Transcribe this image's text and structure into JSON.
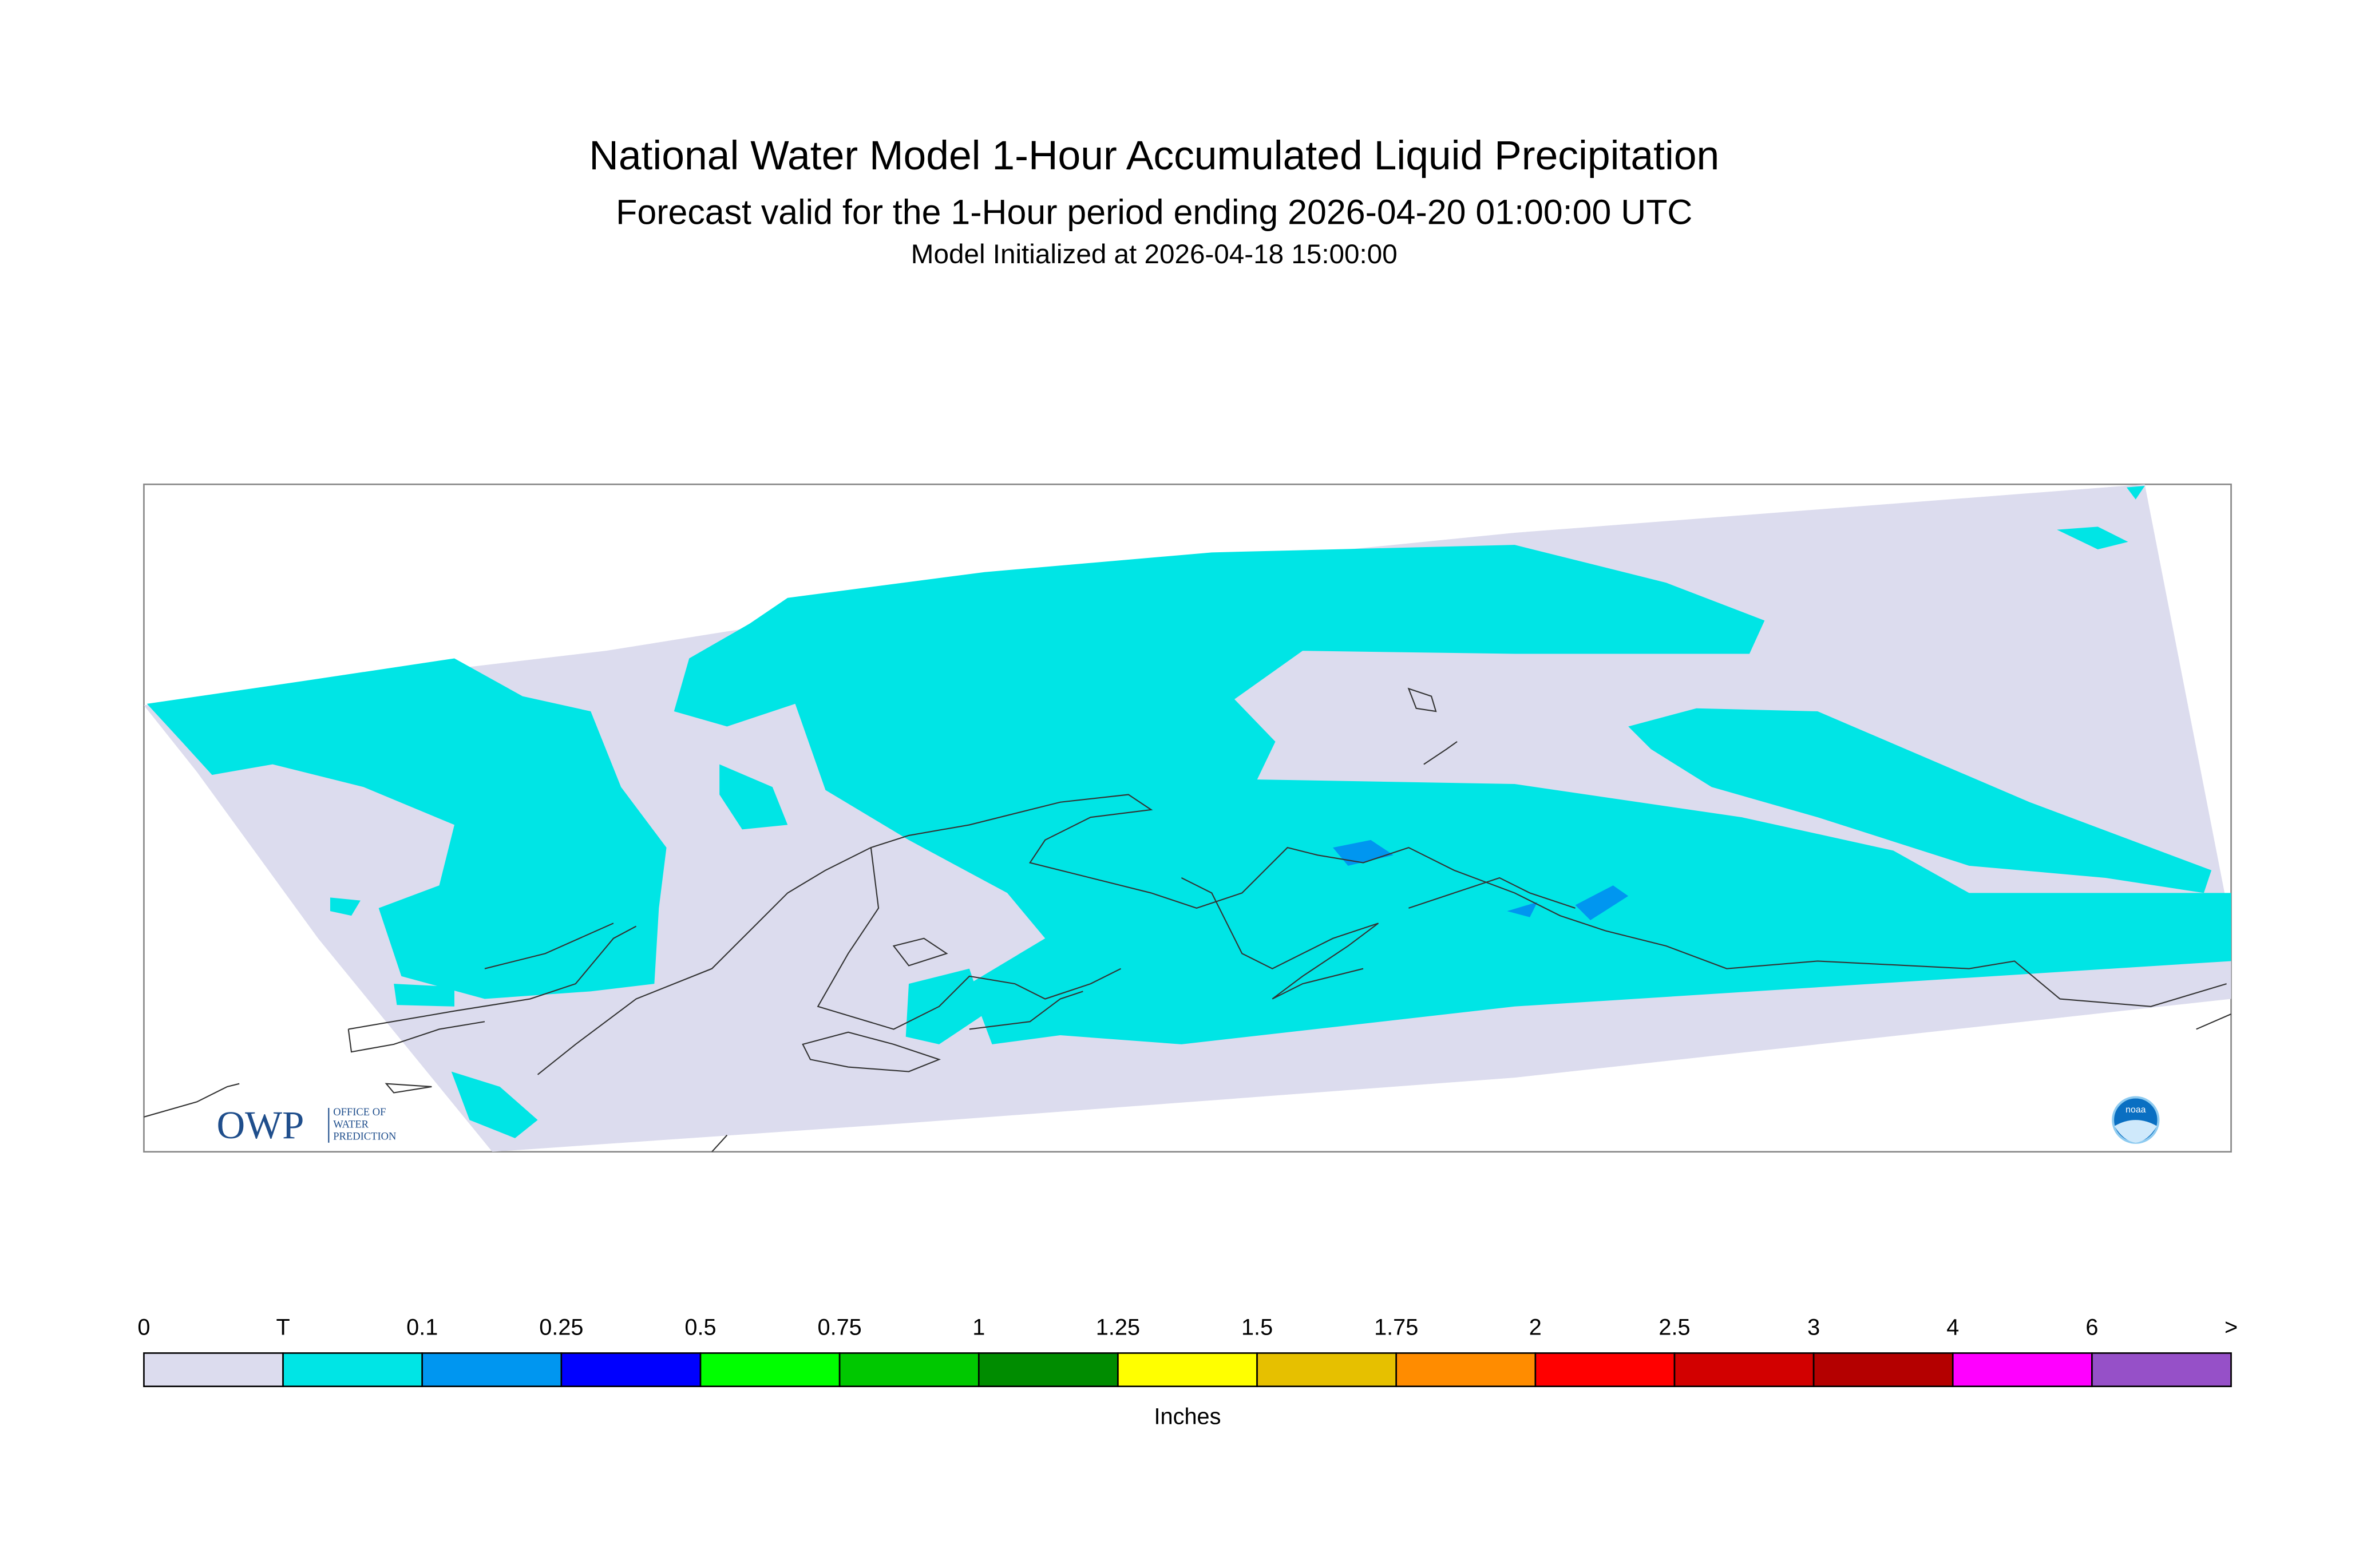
{
  "header": {
    "title": "National Water Model 1-Hour Accumulated Liquid Precipitation",
    "subtitle": "Forecast valid for the 1-Hour period ending 2026-04-20 01:00:00 UTC",
    "initialized": "Model Initialized at 2026-04-18 15:00:00"
  },
  "logos": {
    "owp": "OWP",
    "owp_name": [
      "OFFICE OF",
      "WATER",
      "PREDICTION"
    ],
    "noaa": "noaa"
  },
  "legend": {
    "labels": [
      0,
      "T",
      0.1,
      0.25,
      0.5,
      0.75,
      1,
      1.25,
      1.5,
      1.75,
      2,
      2.5,
      3,
      4,
      6,
      ">"
    ],
    "colors": [
      "#dcdcee",
      "#00e5e5",
      "#0096f0",
      "#0000ff",
      "#00ff00",
      "#00c800",
      "#008c00",
      "#ffff00",
      "#e6c000",
      "#ff8c00",
      "#ff0000",
      "#d20000",
      "#b40000",
      "#ff00ff",
      "#9650c8"
    ],
    "unit": "Inches"
  }
}
